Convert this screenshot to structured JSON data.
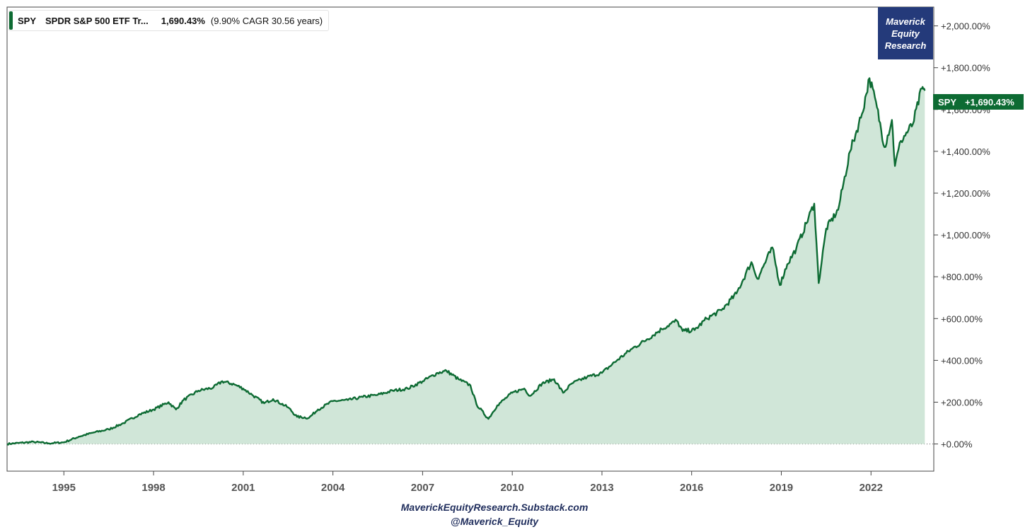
{
  "legend": {
    "symbol": "SPY",
    "name": "SPDR S&P 500 ETF Tr...",
    "value": "1,690.43%",
    "cagr": "(9.90% CAGR 30.56 years)"
  },
  "brand": {
    "line1": "Maverick",
    "line2": "Equity",
    "line3": "Research"
  },
  "price_tag": {
    "symbol": "SPY",
    "value": "+1,690.43%"
  },
  "footer": {
    "line1": "MaverickEquityResearch.Substack.com",
    "line2": "@Maverick_Equity"
  },
  "colors": {
    "line": "#0d6b33",
    "fill": "#d0e6d8",
    "brand_bg": "#243a7a"
  },
  "chart_data": {
    "type": "area",
    "title": "",
    "xlabel": "",
    "ylabel": "",
    "x_ticks": [
      "1995",
      "1998",
      "2001",
      "2004",
      "2007",
      "2010",
      "2013",
      "2016",
      "2019",
      "2022"
    ],
    "y_ticks": [
      "+0.00%",
      "+200.00%",
      "+400.00%",
      "+600.00%",
      "+800.00%",
      "+1,000.00%",
      "+1,200.00%",
      "+1,400.00%",
      "+1,600.00%",
      "+1,800.00%",
      "+2,000.00%"
    ],
    "ylim": [
      -130,
      2090
    ],
    "xlim": [
      1993.1,
      2024.1
    ],
    "grid": false,
    "baseline": 0,
    "series": [
      {
        "name": "SPY",
        "points": [
          [
            1993.1,
            0
          ],
          [
            1993.5,
            5
          ],
          [
            1994.0,
            10
          ],
          [
            1994.5,
            3
          ],
          [
            1995.0,
            8
          ],
          [
            1995.5,
            35
          ],
          [
            1996.0,
            55
          ],
          [
            1996.5,
            70
          ],
          [
            1997.0,
            100
          ],
          [
            1997.5,
            140
          ],
          [
            1998.0,
            165
          ],
          [
            1998.5,
            200
          ],
          [
            1998.75,
            165
          ],
          [
            1999.0,
            210
          ],
          [
            1999.5,
            255
          ],
          [
            2000.0,
            270
          ],
          [
            2000.3,
            300
          ],
          [
            2000.7,
            285
          ],
          [
            2001.0,
            265
          ],
          [
            2001.3,
            235
          ],
          [
            2001.7,
            195
          ],
          [
            2002.0,
            215
          ],
          [
            2002.5,
            175
          ],
          [
            2002.8,
            130
          ],
          [
            2003.2,
            125
          ],
          [
            2003.5,
            165
          ],
          [
            2004.0,
            205
          ],
          [
            2004.5,
            210
          ],
          [
            2005.0,
            225
          ],
          [
            2005.5,
            235
          ],
          [
            2006.0,
            255
          ],
          [
            2006.5,
            265
          ],
          [
            2007.0,
            300
          ],
          [
            2007.5,
            340
          ],
          [
            2007.8,
            350
          ],
          [
            2008.2,
            310
          ],
          [
            2008.6,
            280
          ],
          [
            2008.8,
            190
          ],
          [
            2009.2,
            120
          ],
          [
            2009.5,
            185
          ],
          [
            2010.0,
            245
          ],
          [
            2010.4,
            265
          ],
          [
            2010.6,
            230
          ],
          [
            2011.0,
            290
          ],
          [
            2011.4,
            310
          ],
          [
            2011.7,
            245
          ],
          [
            2012.0,
            290
          ],
          [
            2012.5,
            320
          ],
          [
            2013.0,
            340
          ],
          [
            2013.5,
            400
          ],
          [
            2014.0,
            455
          ],
          [
            2014.5,
            500
          ],
          [
            2015.0,
            550
          ],
          [
            2015.5,
            590
          ],
          [
            2015.7,
            540
          ],
          [
            2016.1,
            545
          ],
          [
            2016.5,
            600
          ],
          [
            2017.0,
            640
          ],
          [
            2017.5,
            720
          ],
          [
            2018.0,
            870
          ],
          [
            2018.2,
            790
          ],
          [
            2018.7,
            940
          ],
          [
            2018.95,
            760
          ],
          [
            2019.2,
            860
          ],
          [
            2019.5,
            935
          ],
          [
            2020.1,
            1150
          ],
          [
            2020.25,
            770
          ],
          [
            2020.5,
            1030
          ],
          [
            2020.9,
            1120
          ],
          [
            2021.3,
            1400
          ],
          [
            2021.7,
            1580
          ],
          [
            2021.95,
            1750
          ],
          [
            2022.2,
            1610
          ],
          [
            2022.45,
            1420
          ],
          [
            2022.7,
            1550
          ],
          [
            2022.8,
            1330
          ],
          [
            2023.0,
            1450
          ],
          [
            2023.4,
            1530
          ],
          [
            2023.7,
            1700
          ],
          [
            2023.8,
            1690
          ]
        ]
      }
    ]
  }
}
